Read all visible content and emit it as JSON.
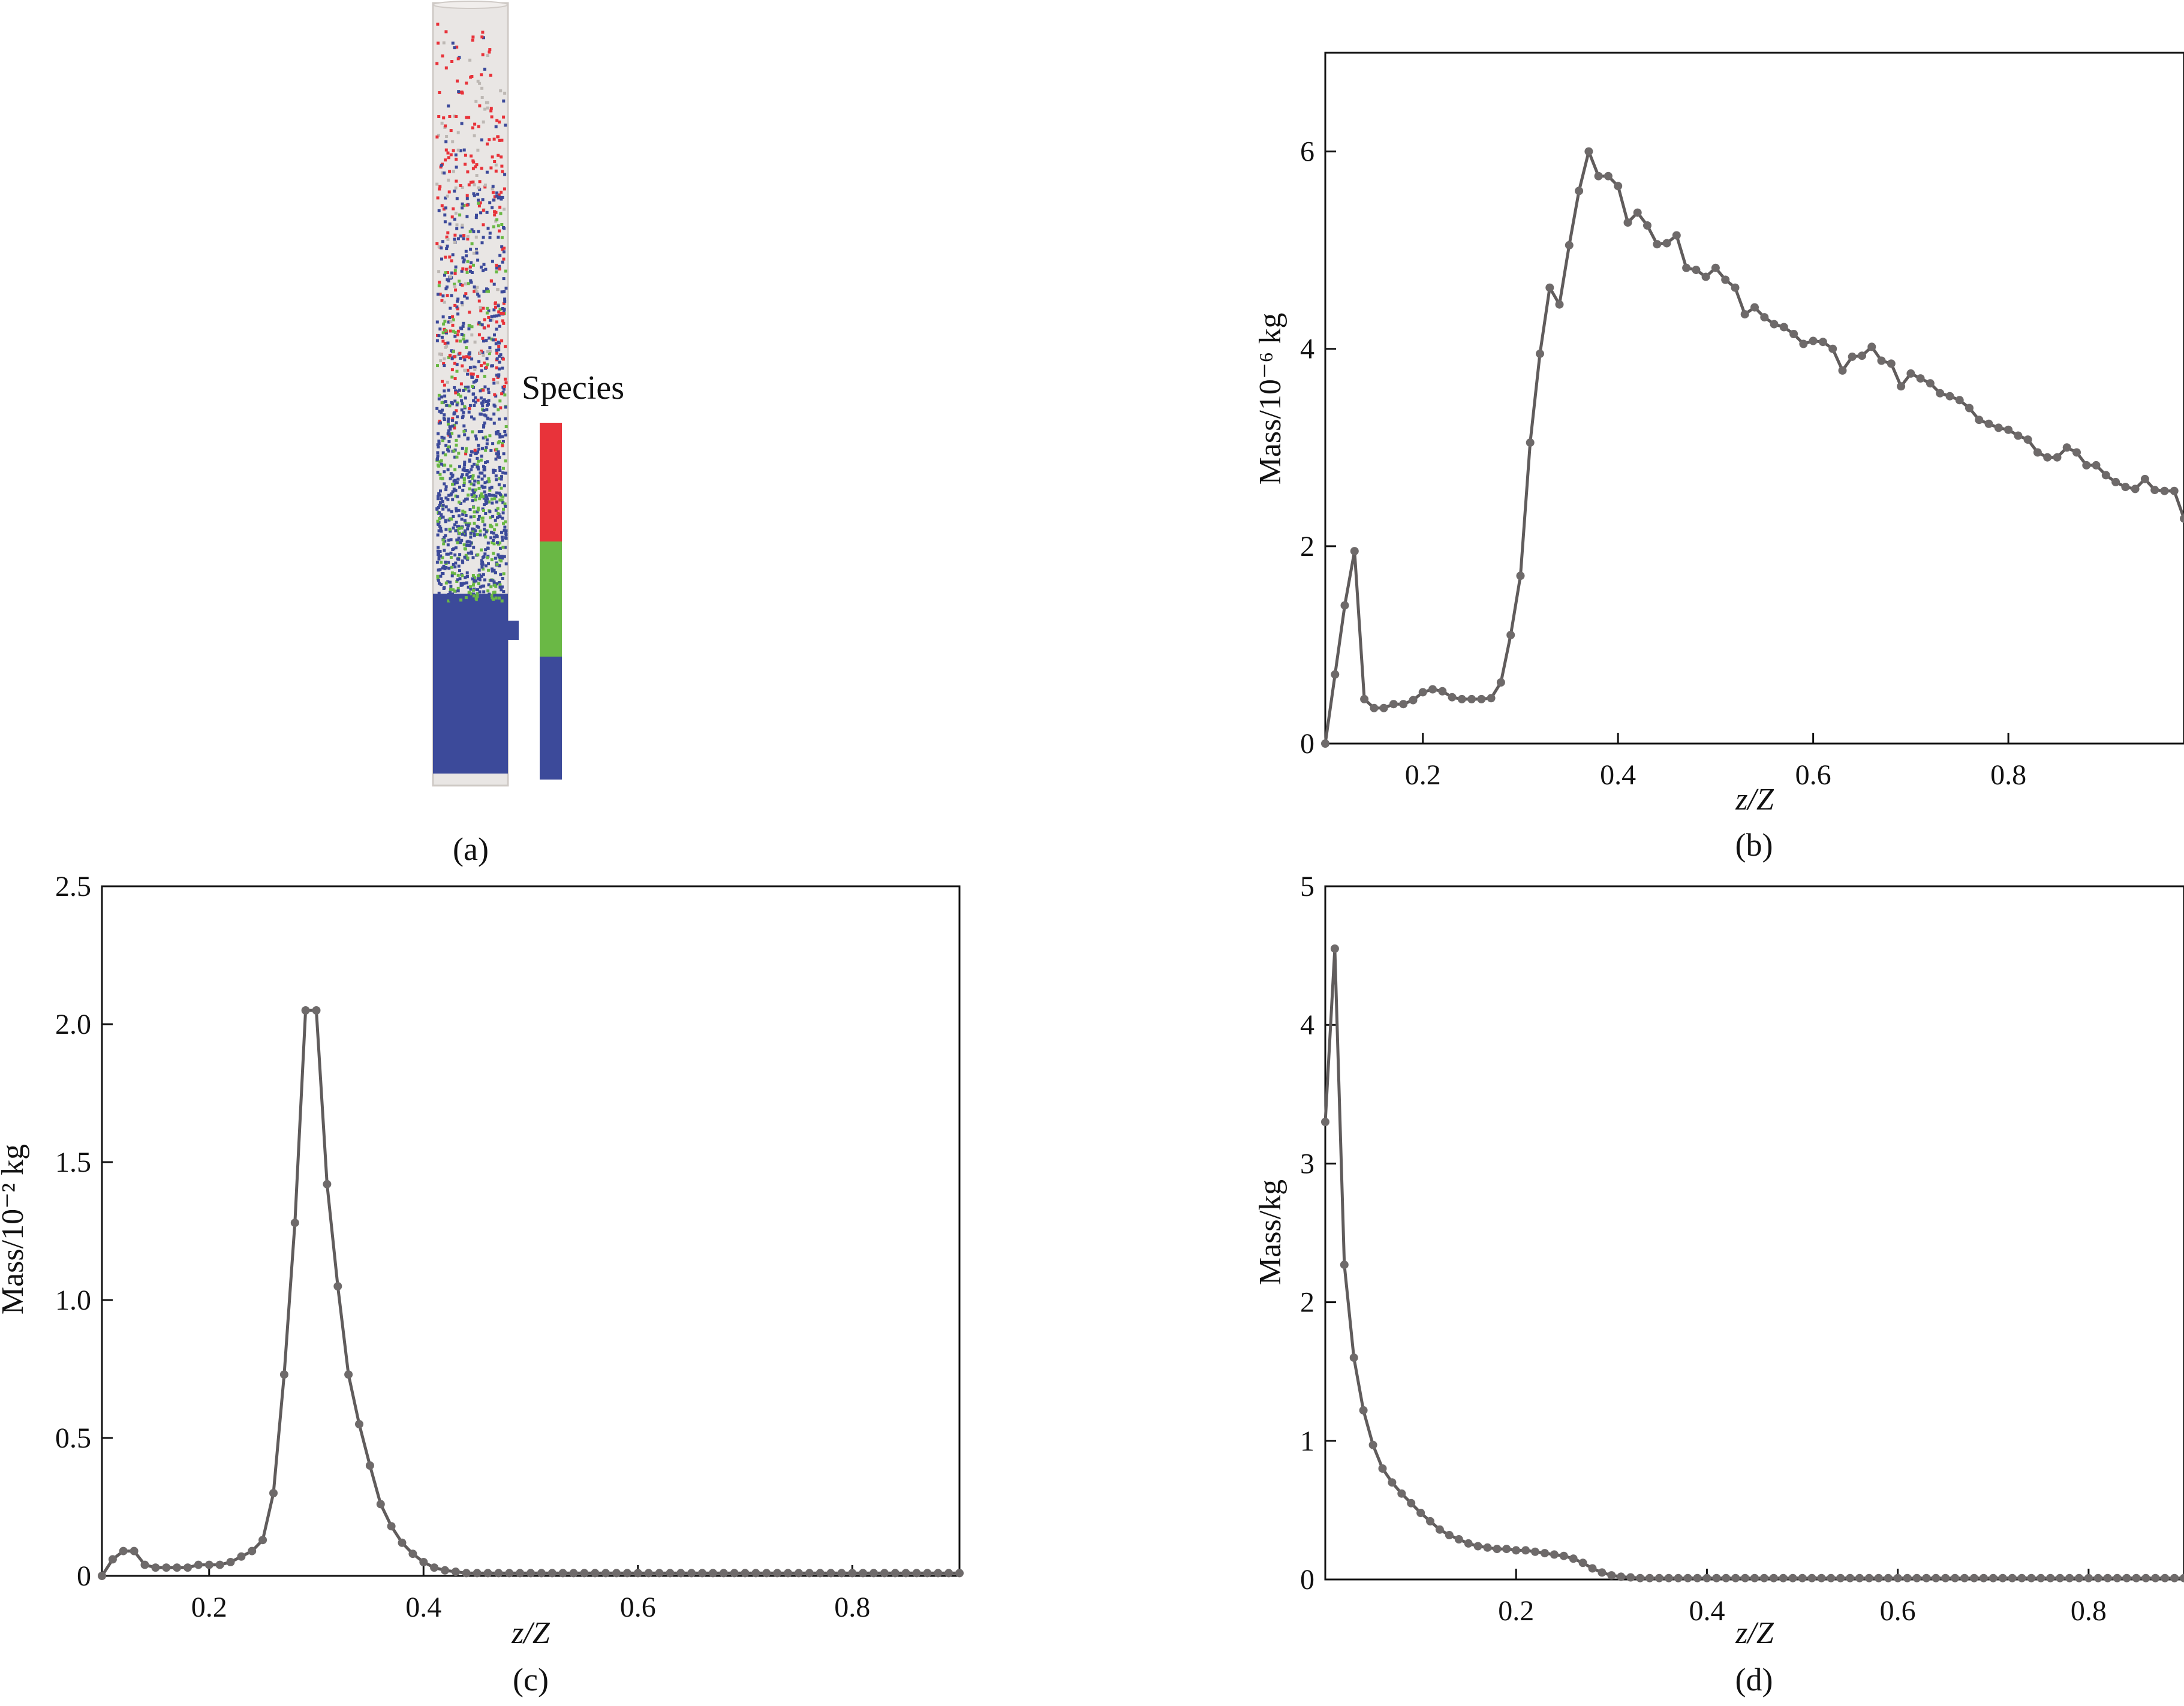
{
  "panels": {
    "a": {
      "label": "(a)",
      "legend_title": "Species",
      "species_colors": [
        "#e8333a",
        "#6ab845",
        "#3c4a9a"
      ]
    },
    "b": {
      "label": "(b)"
    },
    "c": {
      "label": "(c)"
    },
    "d": {
      "label": "(d)"
    }
  },
  "colors": {
    "line": "#605c5c",
    "marker": "#6e6a6a",
    "axis": "#111111"
  },
  "chart_data": [
    {
      "panel": "b",
      "type": "line",
      "xlabel": "z/Z",
      "ylabel": "Mass/10⁻⁶ kg",
      "xlim": [
        0.1,
        0.98
      ],
      "ylim": [
        0,
        7
      ],
      "xticks": [
        0.2,
        0.4,
        0.6,
        0.8
      ],
      "xtick_labels": [
        "0.2",
        "0.4",
        "0.6",
        "0.8"
      ],
      "yticks": [
        0,
        2,
        4,
        6
      ],
      "ytick_labels": [
        "0",
        "2",
        "4",
        "6"
      ],
      "x": [
        0.1,
        0.11,
        0.12,
        0.13,
        0.14,
        0.15,
        0.16,
        0.17,
        0.18,
        0.19,
        0.2,
        0.21,
        0.22,
        0.23,
        0.24,
        0.25,
        0.26,
        0.27,
        0.28,
        0.29,
        0.3,
        0.31,
        0.32,
        0.33,
        0.34,
        0.35,
        0.36,
        0.37,
        0.38,
        0.39,
        0.4,
        0.41,
        0.42,
        0.43,
        0.44,
        0.45,
        0.46,
        0.47,
        0.48,
        0.49,
        0.5,
        0.51,
        0.52,
        0.53,
        0.54,
        0.55,
        0.56,
        0.57,
        0.58,
        0.59,
        0.6,
        0.61,
        0.62,
        0.63,
        0.64,
        0.65,
        0.66,
        0.67,
        0.68,
        0.69,
        0.7,
        0.71,
        0.72,
        0.73,
        0.74,
        0.75,
        0.76,
        0.77,
        0.78,
        0.79,
        0.8,
        0.81,
        0.82,
        0.83,
        0.84,
        0.85,
        0.86,
        0.87,
        0.88,
        0.89,
        0.9,
        0.91,
        0.92,
        0.93,
        0.94,
        0.95,
        0.96,
        0.97,
        0.98
      ],
      "y": [
        0.0,
        0.7,
        1.4,
        1.95,
        0.45,
        0.36,
        0.36,
        0.4,
        0.4,
        0.44,
        0.52,
        0.55,
        0.53,
        0.47,
        0.45,
        0.45,
        0.45,
        0.46,
        0.62,
        1.1,
        1.7,
        3.05,
        3.95,
        4.62,
        4.45,
        5.05,
        5.6,
        6.0,
        5.75,
        5.75,
        5.65,
        5.28,
        5.38,
        5.25,
        5.06,
        5.07,
        5.15,
        4.82,
        4.8,
        4.73,
        4.82,
        4.7,
        4.62,
        4.35,
        4.42,
        4.32,
        4.25,
        4.22,
        4.15,
        4.05,
        4.08,
        4.07,
        4.0,
        3.78,
        3.92,
        3.93,
        4.02,
        3.88,
        3.85,
        3.62,
        3.75,
        3.7,
        3.65,
        3.55,
        3.52,
        3.48,
        3.4,
        3.28,
        3.24,
        3.2,
        3.18,
        3.12,
        3.08,
        2.95,
        2.9,
        2.9,
        3.0,
        2.95,
        2.82,
        2.82,
        2.72,
        2.65,
        2.6,
        2.58,
        2.68,
        2.57,
        2.56,
        2.56,
        2.28
      ]
    },
    {
      "panel": "c",
      "type": "line",
      "xlabel": "z/Z",
      "ylabel": "Mass/10⁻² kg",
      "xlim": [
        0.1,
        0.9
      ],
      "ylim": [
        0,
        2.5
      ],
      "xticks": [
        0.2,
        0.4,
        0.6,
        0.8
      ],
      "xtick_labels": [
        "0.2",
        "0.4",
        "0.6",
        "0.8"
      ],
      "yticks": [
        0,
        0.5,
        1.0,
        1.5,
        2.0,
        2.5
      ],
      "ytick_labels": [
        "0",
        "0.5",
        "1.0",
        "1.5",
        "2.0",
        "2.5"
      ],
      "x": [
        0.1,
        0.11,
        0.12,
        0.13,
        0.14,
        0.15,
        0.16,
        0.17,
        0.18,
        0.19,
        0.2,
        0.21,
        0.22,
        0.23,
        0.24,
        0.25,
        0.26,
        0.27,
        0.28,
        0.29,
        0.3,
        0.31,
        0.32,
        0.33,
        0.34,
        0.35,
        0.36,
        0.37,
        0.38,
        0.39,
        0.4,
        0.41,
        0.42,
        0.43,
        0.44,
        0.45,
        0.46,
        0.47,
        0.48,
        0.49,
        0.5,
        0.51,
        0.52,
        0.53,
        0.54,
        0.55,
        0.56,
        0.57,
        0.58,
        0.59,
        0.6,
        0.61,
        0.62,
        0.63,
        0.64,
        0.65,
        0.66,
        0.67,
        0.68,
        0.69,
        0.7,
        0.71,
        0.72,
        0.73,
        0.74,
        0.75,
        0.76,
        0.77,
        0.78,
        0.79,
        0.8,
        0.81,
        0.82,
        0.83,
        0.84,
        0.85,
        0.86,
        0.87,
        0.88,
        0.89,
        0.9
      ],
      "y": [
        0.0,
        0.06,
        0.09,
        0.09,
        0.04,
        0.03,
        0.03,
        0.03,
        0.03,
        0.04,
        0.04,
        0.04,
        0.05,
        0.07,
        0.09,
        0.13,
        0.3,
        0.73,
        1.28,
        2.05,
        2.05,
        1.42,
        1.05,
        0.73,
        0.55,
        0.4,
        0.26,
        0.18,
        0.12,
        0.08,
        0.05,
        0.03,
        0.02,
        0.015,
        0.01,
        0.01,
        0.01,
        0.01,
        0.01,
        0.01,
        0.01,
        0.01,
        0.01,
        0.01,
        0.01,
        0.01,
        0.01,
        0.01,
        0.01,
        0.01,
        0.01,
        0.01,
        0.01,
        0.01,
        0.01,
        0.01,
        0.01,
        0.01,
        0.01,
        0.01,
        0.01,
        0.01,
        0.01,
        0.01,
        0.01,
        0.01,
        0.01,
        0.01,
        0.01,
        0.01,
        0.01,
        0.01,
        0.01,
        0.01,
        0.01,
        0.01,
        0.01,
        0.01,
        0.01,
        0.01,
        0.01
      ]
    },
    {
      "panel": "d",
      "type": "line",
      "xlabel": "z/Z",
      "ylabel": "Mass/kg",
      "xlim": [
        0.0,
        0.9
      ],
      "ylim": [
        0,
        5
      ],
      "xticks": [
        0.2,
        0.4,
        0.6,
        0.8
      ],
      "xtick_labels": [
        "0.2",
        "0.4",
        "0.6",
        "0.8"
      ],
      "yticks": [
        0,
        1,
        2,
        3,
        4,
        5
      ],
      "ytick_labels": [
        "0",
        "1",
        "2",
        "3",
        "4",
        "5"
      ],
      "x": [
        0.0,
        0.01,
        0.02,
        0.03,
        0.04,
        0.05,
        0.06,
        0.07,
        0.08,
        0.09,
        0.1,
        0.11,
        0.12,
        0.13,
        0.14,
        0.15,
        0.16,
        0.17,
        0.18,
        0.19,
        0.2,
        0.21,
        0.22,
        0.23,
        0.24,
        0.25,
        0.26,
        0.27,
        0.28,
        0.29,
        0.3,
        0.31,
        0.32,
        0.33,
        0.34,
        0.35,
        0.36,
        0.37,
        0.38,
        0.39,
        0.4,
        0.41,
        0.42,
        0.43,
        0.44,
        0.45,
        0.46,
        0.47,
        0.48,
        0.49,
        0.5,
        0.51,
        0.52,
        0.53,
        0.54,
        0.55,
        0.56,
        0.57,
        0.58,
        0.59,
        0.6,
        0.61,
        0.62,
        0.63,
        0.64,
        0.65,
        0.66,
        0.67,
        0.68,
        0.69,
        0.7,
        0.71,
        0.72,
        0.73,
        0.74,
        0.75,
        0.76,
        0.77,
        0.78,
        0.79,
        0.8,
        0.81,
        0.82,
        0.83,
        0.84,
        0.85,
        0.86,
        0.87,
        0.88,
        0.89,
        0.9
      ],
      "y": [
        3.3,
        4.55,
        2.27,
        1.6,
        1.22,
        0.97,
        0.8,
        0.7,
        0.62,
        0.55,
        0.48,
        0.42,
        0.36,
        0.32,
        0.29,
        0.26,
        0.24,
        0.23,
        0.22,
        0.22,
        0.21,
        0.21,
        0.2,
        0.19,
        0.18,
        0.17,
        0.15,
        0.12,
        0.08,
        0.05,
        0.03,
        0.02,
        0.015,
        0.01,
        0.01,
        0.01,
        0.01,
        0.01,
        0.01,
        0.01,
        0.01,
        0.01,
        0.01,
        0.01,
        0.01,
        0.01,
        0.01,
        0.01,
        0.01,
        0.01,
        0.01,
        0.01,
        0.01,
        0.01,
        0.01,
        0.01,
        0.01,
        0.01,
        0.01,
        0.01,
        0.01,
        0.01,
        0.01,
        0.01,
        0.01,
        0.01,
        0.01,
        0.01,
        0.01,
        0.01,
        0.01,
        0.01,
        0.01,
        0.01,
        0.01,
        0.01,
        0.01,
        0.01,
        0.01,
        0.01,
        0.01,
        0.01,
        0.01,
        0.01,
        0.01,
        0.01,
        0.01,
        0.01,
        0.01,
        0.01,
        0.01
      ]
    }
  ]
}
